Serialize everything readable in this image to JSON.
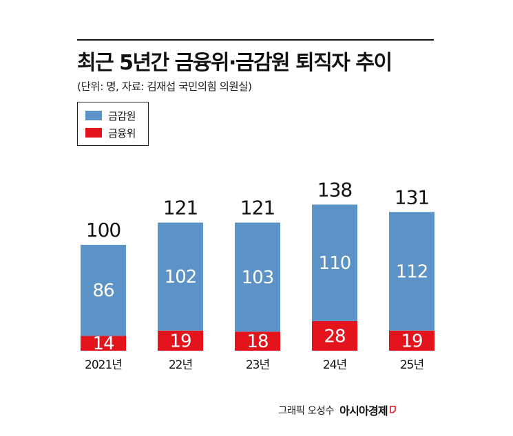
{
  "title": "최근 5년간 금융위·금감원 퇴직자 추이",
  "subtitle": "(단위: 명, 자료: 김재섭 국민의힘 의원실)",
  "legend": [
    {
      "label": "금감원",
      "color": "#5b93c7"
    },
    {
      "label": "금융위",
      "color": "#e3141b"
    }
  ],
  "credit": {
    "text": "그래픽 오성수",
    "brand": "아시아경제",
    "brand_mark_color": "#e3141b"
  },
  "chart_data": {
    "type": "bar",
    "stacked": true,
    "categories": [
      "2021년",
      "22년",
      "23년",
      "24년",
      "25년"
    ],
    "series": [
      {
        "name": "금융위",
        "color": "#e3141b",
        "values": [
          14,
          19,
          18,
          28,
          19
        ]
      },
      {
        "name": "금감원",
        "color": "#5b93c7",
        "values": [
          86,
          102,
          103,
          110,
          112
        ]
      }
    ],
    "totals": [
      100,
      121,
      121,
      138,
      131
    ],
    "ylim": [
      0,
      140
    ],
    "grid": false,
    "legend_position": "top-left"
  }
}
